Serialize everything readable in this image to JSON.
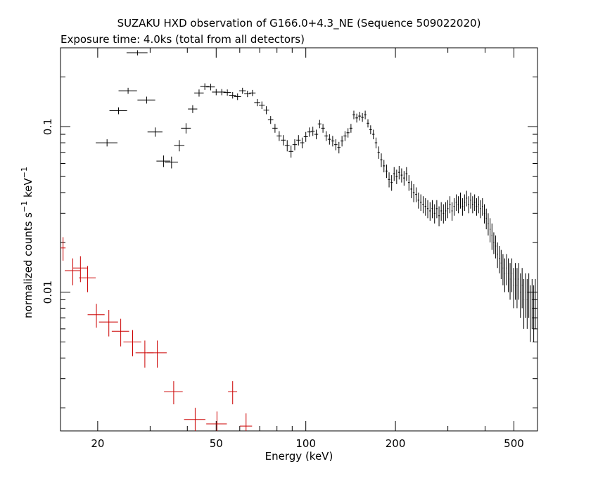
{
  "chart_data": {
    "type": "scatter",
    "title": "SUZAKU HXD observation of G166.0+4.3_NE (Sequence 509022020)",
    "subtitle": "Exposure time: 4.0ks (total from all detectors)",
    "xlabel": "Energy (keV)",
    "ylabel_main": "normalized counts s",
    "ylabel_sup1": "−1",
    "ylabel_mid": " keV",
    "ylabel_sup2": "−1",
    "x_scale": "log",
    "y_scale": "log",
    "xlim": [
      15,
      600
    ],
    "ylim": [
      0.00145,
      0.3
    ],
    "x_ticks": [
      {
        "value": 20,
        "label": "20"
      },
      {
        "value": 50,
        "label": "50"
      },
      {
        "value": 100,
        "label": "100"
      },
      {
        "value": 200,
        "label": "200"
      },
      {
        "value": 500,
        "label": "500"
      }
    ],
    "y_ticks": [
      {
        "value": 0.01,
        "label": "0.01"
      },
      {
        "value": 0.1,
        "label": "0.1"
      }
    ],
    "grid": false,
    "legend": "none",
    "series": [
      {
        "color": "#000000",
        "points": [
          [
            21.5,
            0.08,
            1.8,
            0.004
          ],
          [
            23.5,
            0.125,
            1.6,
            0.006
          ],
          [
            25.3,
            0.165,
            1.8,
            0.007
          ],
          [
            27.2,
            0.28,
            2.2,
            0.01
          ],
          [
            29.2,
            0.145,
            2.0,
            0.007
          ],
          [
            31.2,
            0.093,
            1.8,
            0.006
          ],
          [
            33.3,
            0.062,
            1.8,
            0.005
          ],
          [
            35.4,
            0.061,
            1.8,
            0.005
          ],
          [
            37.6,
            0.077,
            1.5,
            0.006
          ],
          [
            39.6,
            0.098,
            1.5,
            0.007
          ],
          [
            41.7,
            0.128,
            1.5,
            0.007
          ],
          [
            43.8,
            0.16,
            1.6,
            0.008
          ],
          [
            45.8,
            0.175,
            1.6,
            0.008
          ],
          [
            47.9,
            0.174,
            1.6,
            0.008
          ],
          [
            50.0,
            0.162,
            1.6,
            0.007
          ],
          [
            52.2,
            0.162,
            1.6,
            0.007
          ],
          [
            54.5,
            0.161,
            1.6,
            0.007
          ],
          [
            56.8,
            0.155,
            1.6,
            0.007
          ],
          [
            59.0,
            0.152,
            1.6,
            0.007
          ],
          [
            61.3,
            0.165,
            1.6,
            0.007
          ],
          [
            63.7,
            0.158,
            1.6,
            0.007
          ],
          [
            66.2,
            0.16,
            1.6,
            0.007
          ],
          [
            68.7,
            0.14,
            1.6,
            0.007
          ],
          [
            71.2,
            0.135,
            1.6,
            0.007
          ],
          [
            73.7,
            0.126,
            1.6,
            0.007
          ],
          [
            76.2,
            0.11,
            1.6,
            0.006
          ],
          [
            78.8,
            0.098,
            1.6,
            0.006
          ],
          [
            81.4,
            0.088,
            1.6,
            0.006
          ],
          [
            84.0,
            0.083,
            1.6,
            0.006
          ],
          [
            86.6,
            0.077,
            1.6,
            0.006
          ],
          [
            89.2,
            0.071,
            1.6,
            0.006
          ],
          [
            91.8,
            0.078,
            1.6,
            0.006
          ],
          [
            94.5,
            0.083,
            1.6,
            0.006
          ],
          [
            97.2,
            0.08,
            1.6,
            0.006
          ],
          [
            100.0,
            0.087,
            1.6,
            0.006
          ],
          [
            102.8,
            0.093,
            1.6,
            0.006
          ],
          [
            105.6,
            0.094,
            1.6,
            0.006
          ],
          [
            108.4,
            0.09,
            1.6,
            0.006
          ],
          [
            111.3,
            0.104,
            1.6,
            0.006
          ],
          [
            114.2,
            0.098,
            1.6,
            0.006
          ],
          [
            117.1,
            0.088,
            1.6,
            0.006
          ],
          [
            120.1,
            0.084,
            1.6,
            0.006
          ],
          [
            123.1,
            0.082,
            1.6,
            0.006
          ],
          [
            126.1,
            0.078,
            1.6,
            0.006
          ],
          [
            129.2,
            0.075,
            1.6,
            0.006
          ],
          [
            132.3,
            0.082,
            1.6,
            0.006
          ],
          [
            135.4,
            0.088,
            1.6,
            0.006
          ],
          [
            138.6,
            0.092,
            1.6,
            0.006
          ],
          [
            141.8,
            0.098,
            1.6,
            0.006
          ],
          [
            145.0,
            0.118,
            1.6,
            0.007
          ],
          [
            148.3,
            0.113,
            1.6,
            0.007
          ],
          [
            151.6,
            0.116,
            1.6,
            0.007
          ],
          [
            154.9,
            0.114,
            1.6,
            0.007
          ],
          [
            158.3,
            0.118,
            1.6,
            0.007
          ],
          [
            161.7,
            0.105,
            1.6,
            0.006
          ],
          [
            165.1,
            0.096,
            1.6,
            0.006
          ],
          [
            168.6,
            0.09,
            1.6,
            0.006
          ],
          [
            172.1,
            0.08,
            1.6,
            0.006
          ],
          [
            175.7,
            0.07,
            1.6,
            0.006
          ],
          [
            179.3,
            0.063,
            1.6,
            0.006
          ],
          [
            183.0,
            0.058,
            1.6,
            0.005
          ],
          [
            186.7,
            0.054,
            1.6,
            0.005
          ],
          [
            190.4,
            0.048,
            1.6,
            0.005
          ],
          [
            194.2,
            0.046,
            1.6,
            0.005
          ],
          [
            198.0,
            0.052,
            1.6,
            0.005
          ],
          [
            201.9,
            0.05,
            1.6,
            0.005
          ],
          [
            205.8,
            0.053,
            1.6,
            0.005
          ],
          [
            209.8,
            0.051,
            1.6,
            0.005
          ],
          [
            213.8,
            0.049,
            1.6,
            0.005
          ],
          [
            217.9,
            0.052,
            1.6,
            0.005
          ],
          [
            222.0,
            0.046,
            1.6,
            0.005
          ],
          [
            226.2,
            0.042,
            1.6,
            0.005
          ],
          [
            230.4,
            0.04,
            1.6,
            0.005
          ],
          [
            234.7,
            0.039,
            1.6,
            0.004
          ],
          [
            239.0,
            0.036,
            1.6,
            0.004
          ],
          [
            243.4,
            0.035,
            1.6,
            0.004
          ],
          [
            247.8,
            0.034,
            1.6,
            0.004
          ],
          [
            252.3,
            0.033,
            1.6,
            0.004
          ],
          [
            256.8,
            0.032,
            1.6,
            0.004
          ],
          [
            261.4,
            0.031,
            1.6,
            0.004
          ],
          [
            266.0,
            0.032,
            1.6,
            0.004
          ],
          [
            270.7,
            0.03,
            1.6,
            0.004
          ],
          [
            275.4,
            0.032,
            1.6,
            0.004
          ],
          [
            280.2,
            0.029,
            1.6,
            0.004
          ],
          [
            285.0,
            0.031,
            1.6,
            0.004
          ],
          [
            289.9,
            0.03,
            1.6,
            0.004
          ],
          [
            294.8,
            0.031,
            1.6,
            0.004
          ],
          [
            299.8,
            0.032,
            1.6,
            0.004
          ],
          [
            304.8,
            0.034,
            1.6,
            0.004
          ],
          [
            309.9,
            0.031,
            1.6,
            0.004
          ],
          [
            315.0,
            0.033,
            1.6,
            0.004
          ],
          [
            320.2,
            0.035,
            1.6,
            0.004
          ],
          [
            325.4,
            0.034,
            1.6,
            0.004
          ],
          [
            330.7,
            0.036,
            1.6,
            0.004
          ],
          [
            336.0,
            0.033,
            1.6,
            0.004
          ],
          [
            341.4,
            0.035,
            1.6,
            0.004
          ],
          [
            346.8,
            0.037,
            1.6,
            0.004
          ],
          [
            352.3,
            0.034,
            1.6,
            0.004
          ],
          [
            357.8,
            0.036,
            1.6,
            0.004
          ],
          [
            363.4,
            0.034,
            1.6,
            0.004
          ],
          [
            369.0,
            0.035,
            1.6,
            0.004
          ],
          [
            374.7,
            0.033,
            1.6,
            0.004
          ],
          [
            380.4,
            0.034,
            1.6,
            0.004
          ],
          [
            386.2,
            0.032,
            1.6,
            0.004
          ],
          [
            392.0,
            0.033,
            1.6,
            0.004
          ],
          [
            397.9,
            0.03,
            1.6,
            0.004
          ],
          [
            403.8,
            0.028,
            1.6,
            0.004
          ],
          [
            409.8,
            0.026,
            1.6,
            0.004
          ],
          [
            415.8,
            0.024,
            1.6,
            0.004
          ],
          [
            421.9,
            0.022,
            1.6,
            0.004
          ],
          [
            428.0,
            0.02,
            1.6,
            0.003
          ],
          [
            434.2,
            0.019,
            1.6,
            0.003
          ],
          [
            440.4,
            0.017,
            1.6,
            0.003
          ],
          [
            446.7,
            0.016,
            1.6,
            0.003
          ],
          [
            453.0,
            0.015,
            1.6,
            0.003
          ],
          [
            459.4,
            0.014,
            1.6,
            0.003
          ],
          [
            465.8,
            0.013,
            1.6,
            0.003
          ],
          [
            472.3,
            0.014,
            1.6,
            0.003
          ],
          [
            478.8,
            0.013,
            1.6,
            0.003
          ],
          [
            485.4,
            0.012,
            1.6,
            0.003
          ],
          [
            492.0,
            0.013,
            1.6,
            0.003
          ],
          [
            498.7,
            0.011,
            1.6,
            0.003
          ],
          [
            505.4,
            0.012,
            1.6,
            0.003
          ],
          [
            512.2,
            0.011,
            1.6,
            0.003
          ],
          [
            519.0,
            0.012,
            1.6,
            0.003
          ],
          [
            525.9,
            0.01,
            1.6,
            0.003
          ],
          [
            532.8,
            0.011,
            1.6,
            0.003
          ],
          [
            539.8,
            0.009,
            1.6,
            0.003
          ],
          [
            546.8,
            0.01,
            1.6,
            0.003
          ],
          [
            553.9,
            0.009,
            1.6,
            0.003
          ],
          [
            561.0,
            0.01,
            1.6,
            0.003
          ],
          [
            568.2,
            0.008,
            1.6,
            0.003
          ],
          [
            575.4,
            0.009,
            1.6,
            0.003
          ],
          [
            582.7,
            0.008,
            1.6,
            0.003
          ],
          [
            590.0,
            0.009,
            1.6,
            0.003
          ]
        ]
      },
      {
        "color": "#cc0000",
        "points": [
          [
            15.3,
            0.0185,
            0.3,
            0.003
          ],
          [
            16.5,
            0.0135,
            1.0,
            0.0025
          ],
          [
            17.5,
            0.014,
            1.0,
            0.0025
          ],
          [
            18.5,
            0.0122,
            1.2,
            0.0022
          ],
          [
            19.8,
            0.0073,
            1.3,
            0.0012
          ],
          [
            21.8,
            0.0066,
            1.6,
            0.0012
          ],
          [
            23.9,
            0.0058,
            1.6,
            0.0011
          ],
          [
            26.2,
            0.005,
            1.8,
            0.0009
          ],
          [
            28.8,
            0.0043,
            2.0,
            0.0008
          ],
          [
            31.7,
            0.0043,
            2.4,
            0.0008
          ],
          [
            36.0,
            0.0025,
            2.6,
            0.0004
          ],
          [
            42.5,
            0.0017,
            3.5,
            0.0003
          ],
          [
            50.3,
            0.0016,
            4.0,
            0.0003
          ],
          [
            56.8,
            0.0025,
            2.0,
            0.0004
          ],
          [
            63.0,
            0.00155,
            3.0,
            0.0003
          ]
        ]
      }
    ]
  }
}
